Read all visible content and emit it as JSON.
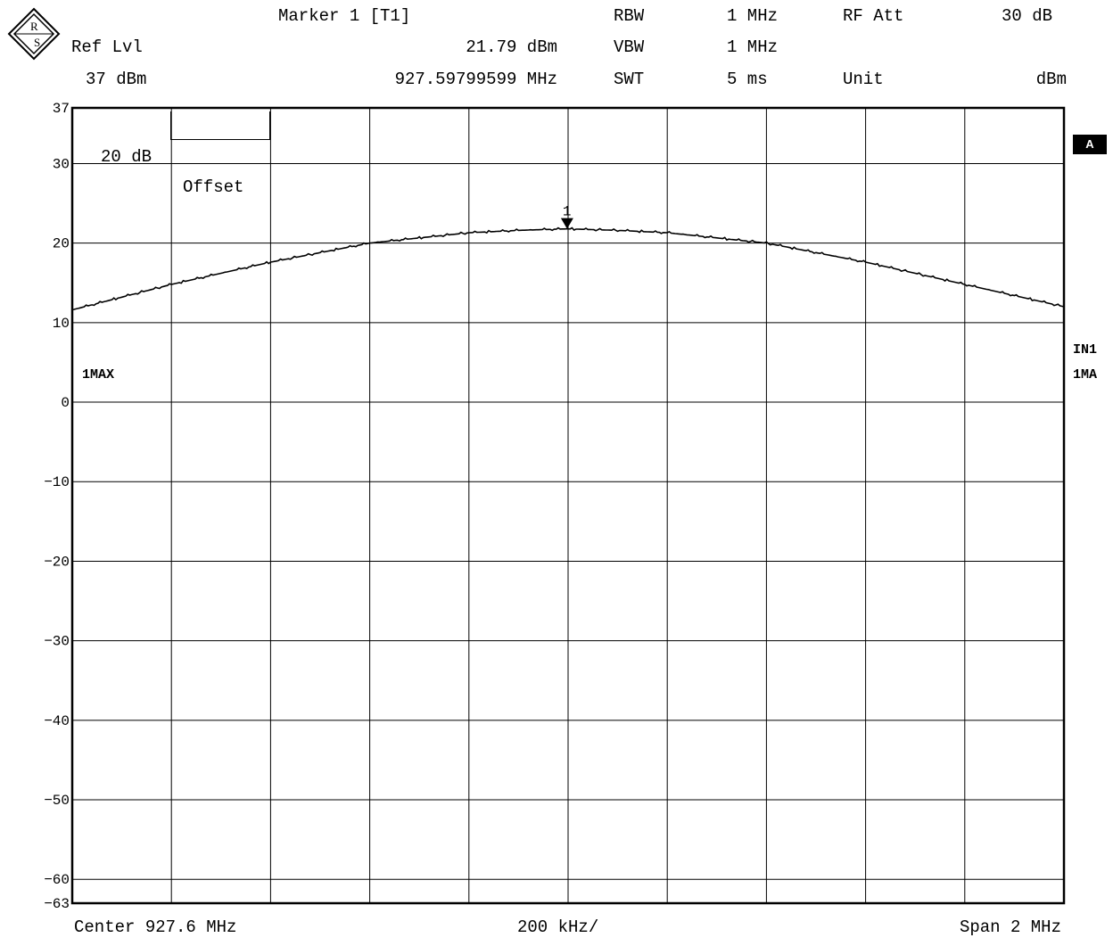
{
  "header": {
    "marker_title": "Marker 1 [T1]",
    "ref_lvl_label": "Ref Lvl",
    "ref_lvl_value": "37 dBm",
    "marker_level": "21.79 dBm",
    "marker_freq": "927.59799599 MHz",
    "rbw_label": "RBW",
    "rbw_value": "1 MHz",
    "vbw_label": "VBW",
    "vbw_value": "1 MHz",
    "swt_label": "SWT",
    "swt_value": "5 ms",
    "rfatt_label": "RF Att",
    "rfatt_value": "30 dB",
    "unit_label": "Unit",
    "unit_value": "dBm"
  },
  "annotations": {
    "offset_label": "20 dB",
    "offset_text": "Offset",
    "trace_label": "1MAX",
    "side_flag": "A",
    "side_in": "IN1",
    "side_ma": "1MA",
    "marker_number": "1"
  },
  "footer": {
    "center": "Center 927.6 MHz",
    "per_div": "200 kHz/",
    "span": "Span 2 MHz"
  },
  "chart_data": {
    "type": "line",
    "xlabel": "",
    "ylabel": "",
    "x_unit": "MHz",
    "y_unit": "dBm",
    "xlim": [
      926.6,
      928.6
    ],
    "ylim": [
      -63,
      37
    ],
    "y_ticks": [
      37,
      30,
      20,
      10,
      0,
      -10,
      -20,
      -30,
      -40,
      -50,
      -60,
      -63
    ],
    "x_divisions": 10,
    "grid": true,
    "series": [
      {
        "x": [
          926.6,
          926.8,
          927.0,
          927.2,
          927.4,
          927.5,
          927.598,
          927.7,
          927.8,
          928.0,
          928.2,
          928.4,
          928.6
        ],
        "y": [
          11.6,
          14.8,
          17.6,
          20.0,
          21.3,
          21.6,
          21.79,
          21.6,
          21.3,
          20.0,
          17.6,
          14.8,
          12.0
        ]
      }
    ],
    "marker": {
      "x": 927.598,
      "y": 21.79
    }
  }
}
